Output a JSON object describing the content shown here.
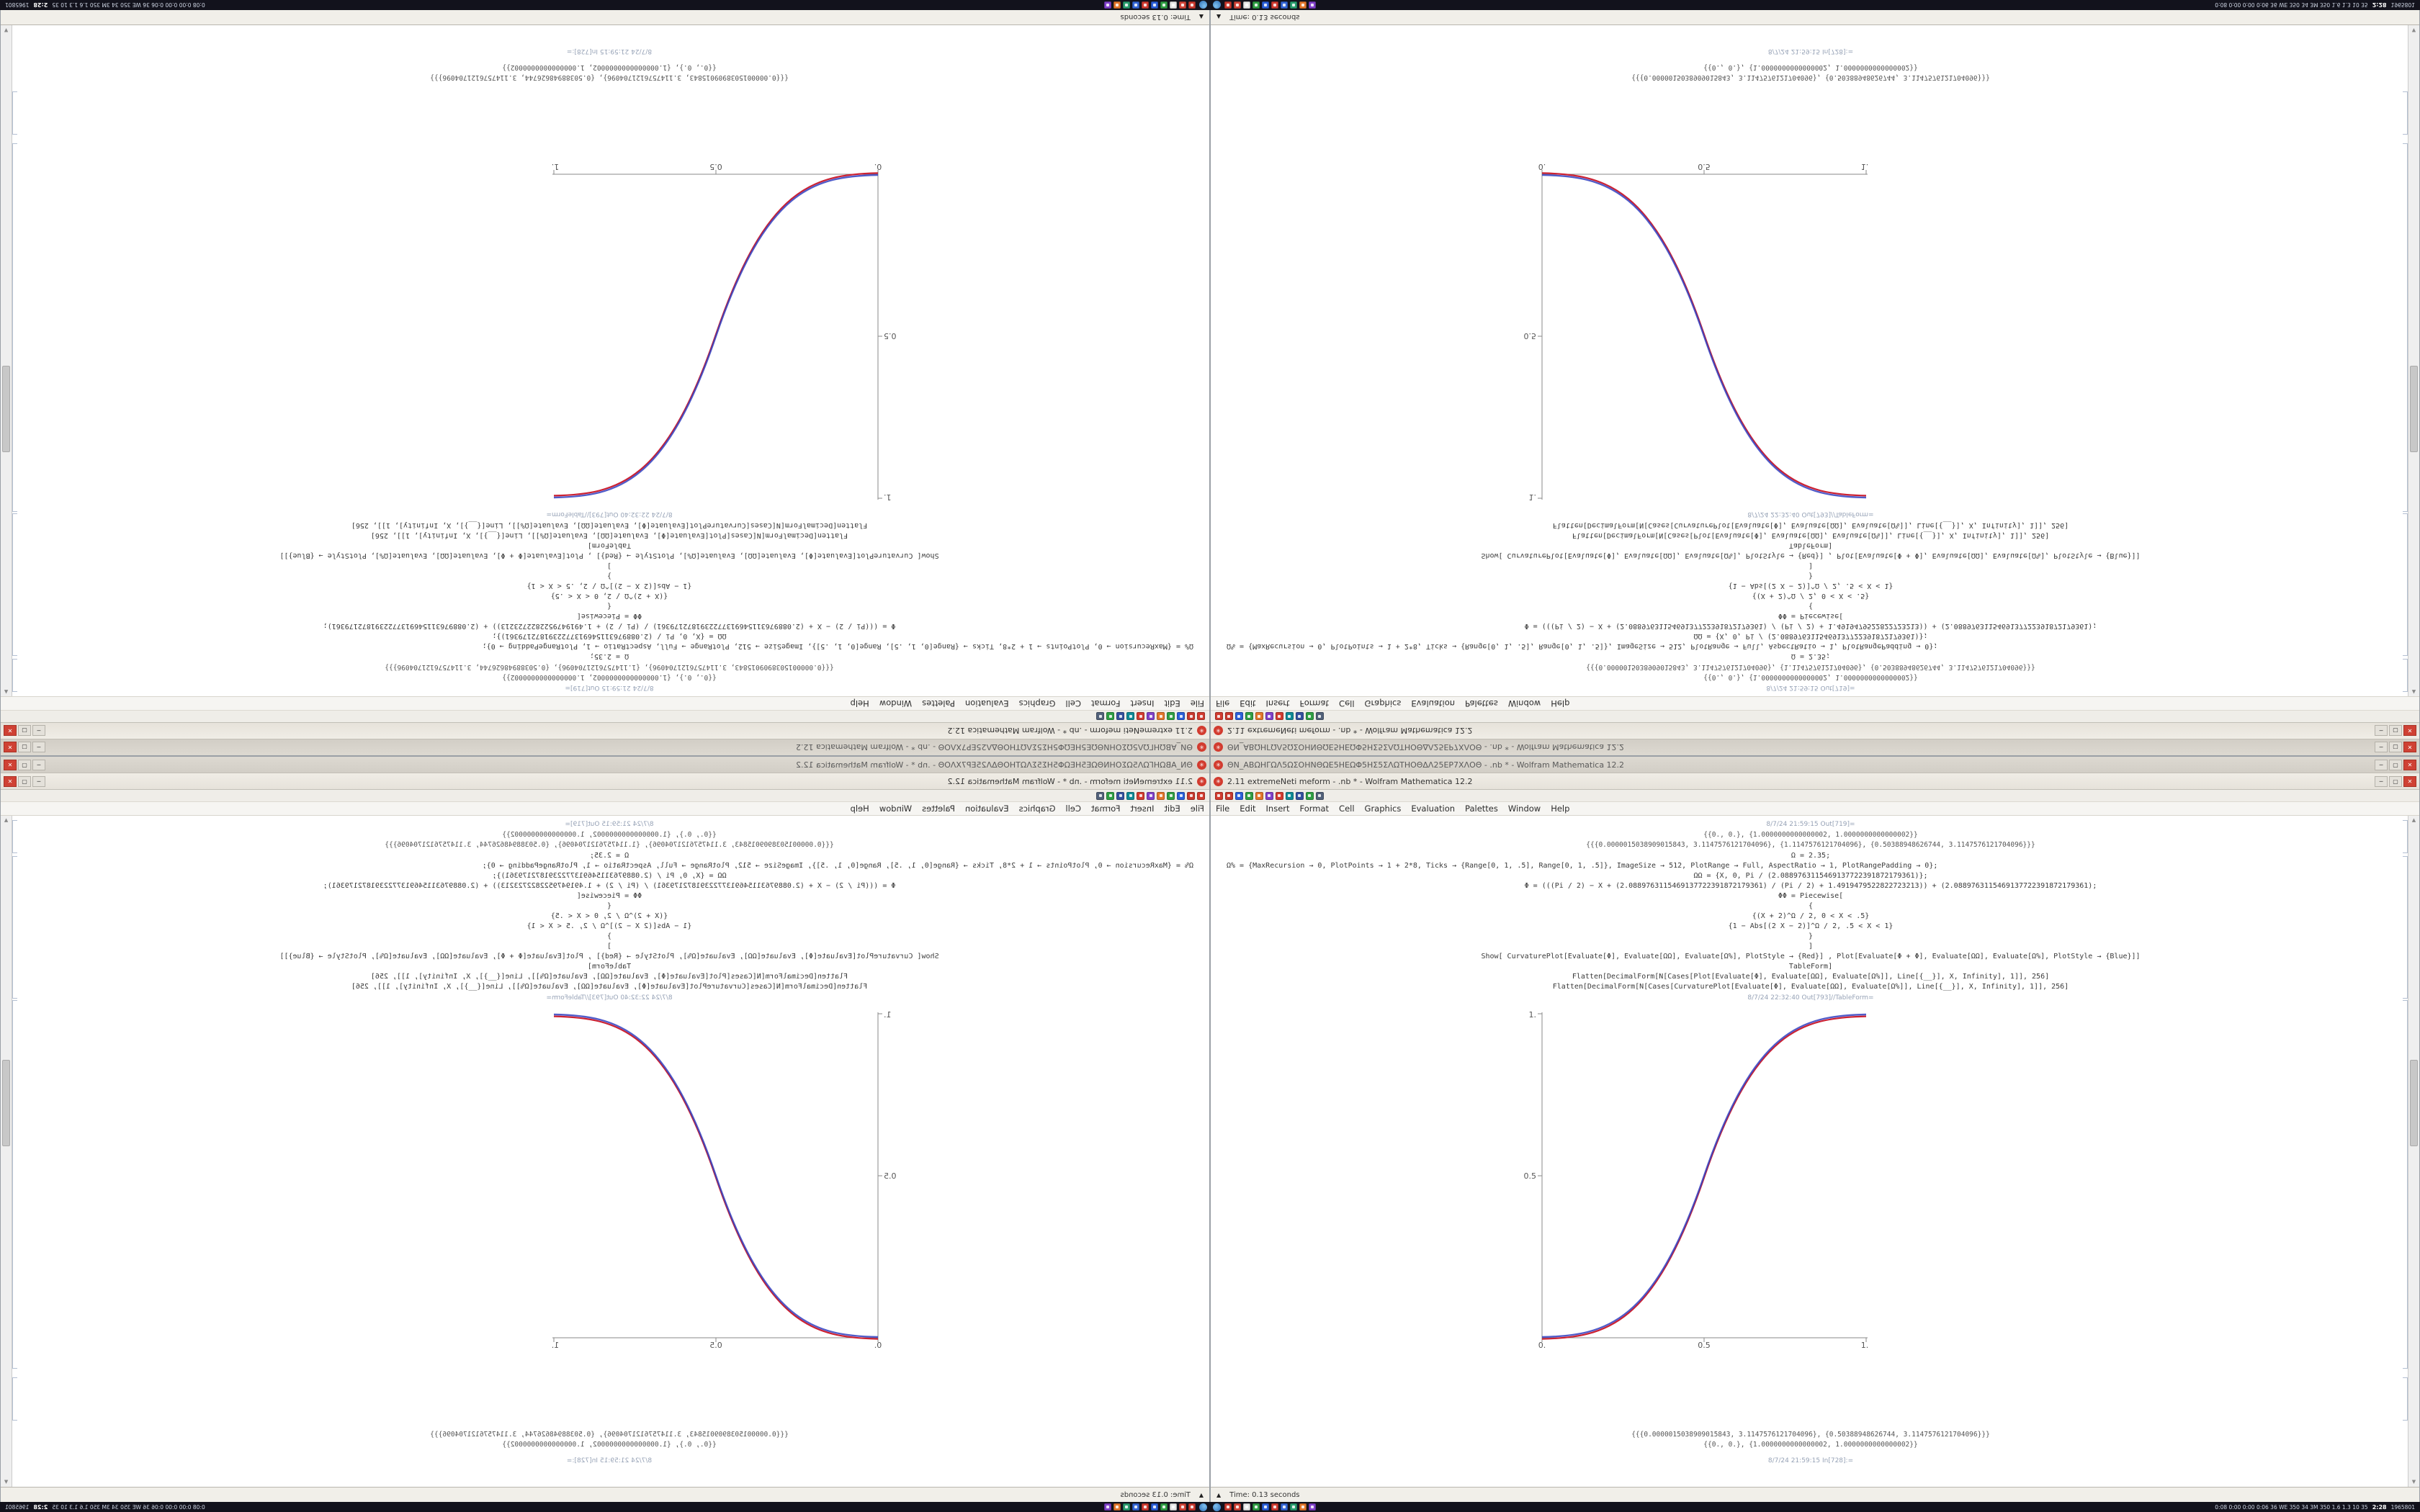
{
  "quadrants": [
    {
      "name": "top-left",
      "transform": "rot180"
    },
    {
      "name": "top-right",
      "transform": "flipv"
    },
    {
      "name": "bottom-left",
      "transform": "fliph"
    },
    {
      "name": "bottom-right",
      "transform": "none"
    }
  ],
  "desktop": {
    "back_window": {
      "title": "ΘΝ_ΑΒΩΗΓΩΛ5ΩΣΟΗΝΘΩΕ5ΗΕΩΦ5ΗΣ5ΣΛΩΤΗΟΘΔΛ25ΕΡ7ΧΛΟΘ - .nb * - Wolfram Mathematica 12.2"
    },
    "front_window": {
      "title": "2.11 extremeNeti meform - .nb * - Wolfram Mathematica 12.2"
    },
    "window_controls": {
      "minimize": "─",
      "maximize": "▢",
      "close": "✕"
    },
    "toolbar_icons": [
      {
        "name": "kernel-abort-icon",
        "color": "#d23b2f"
      },
      {
        "name": "kernel-abort2-icon",
        "color": "#c8392e"
      },
      {
        "name": "palette-blue-icon",
        "color": "#2b5fd9"
      },
      {
        "name": "palette-green-icon",
        "color": "#2f9e44"
      },
      {
        "name": "palette-orange-icon",
        "color": "#e2762b"
      },
      {
        "name": "palette-purple-icon",
        "color": "#8041c9"
      },
      {
        "name": "palette-red-icon",
        "color": "#d23b2f"
      },
      {
        "name": "palette-teal-icon",
        "color": "#0f8a96"
      },
      {
        "name": "palette-navy-icon",
        "color": "#34519e"
      },
      {
        "name": "palette-green2-icon",
        "color": "#2f9e44"
      },
      {
        "name": "palette-slate-icon",
        "color": "#52617a"
      }
    ],
    "menu": {
      "items": [
        "File",
        "Edit",
        "Insert",
        "Format",
        "Cell",
        "Graphics",
        "Evaluation",
        "Palettes",
        "Window",
        "Help"
      ]
    },
    "notebook": {
      "top_out_label": "8/7/24 21:59:15 Out[719]=",
      "top_outputs": [
        "{{0., 0.}, {1.0000000000000002, 1.0000000000000002}}",
        "{{{0.0000015038909015843, 3.1147576121704096}, {1.1147576121704096}, {0.50388948626744, 3.1147576121704096}}}"
      ],
      "code_lines": [
        {
          "text": "Ω = 2.35;",
          "align": "center"
        },
        {
          "text": "Ω% = {MaxRecursion → 0, PlotPoints → 1 + 2*8, Ticks → {Range[0, 1, .5], Range[0, 1, .5]}, ImageSize → 512, PlotRange → Full, AspectRatio → 1, PlotRangePadding → 0};",
          "align": "left"
        },
        {
          "text": "ΩΩ = {X, 0, Pi / (2.0889763115469137722391872179361)};",
          "align": "center"
        },
        {
          "text": "Φ = (((Pi / 2) − X + (2.0889763115469137722391872179361) / (Pi / 2) + 1.4919479522822723213)) + (2.0889763115469137722391872179361);",
          "align": "center"
        },
        {
          "text": "ΦΦ = Piecewise[",
          "align": "center"
        },
        {
          "text": "{",
          "align": "center"
        },
        {
          "text": "{(X + 2)^Ω / 2, 0 < X < .5}",
          "align": "center"
        },
        {
          "text": "{1 − Abs[(2 X − 2)]^Ω / 2, .5 < X < 1}",
          "align": "center"
        },
        {
          "text": "}",
          "align": "center"
        },
        {
          "text": "]",
          "align": "center"
        },
        {
          "text": "Show[ CurvaturePlot[Evaluate[Φ], Evaluate[ΩΩ], Evaluate[Ω%], PlotStyle → {Red}] , Plot[Evaluate[Φ + Φ], Evaluate[ΩΩ], Evaluate[Ω%], PlotStyle → {Blue}]]",
          "align": "center"
        },
        {
          "text": "TableForm]",
          "align": "center"
        },
        {
          "text": "Flatten[DecimalForm[N[Cases[Plot[Evaluate[Φ], Evaluate[ΩΩ], Evaluate[Ω%]], Line[{__}], X, Infinity], 1]], 256]",
          "align": "center"
        },
        {
          "text": "Flatten[DecimalForm[N[Cases[CurvaturePlot[Evaluate[Φ], Evaluate[ΩΩ], Evaluate[Ω%]], Line[{__}], X, Infinity], 1]], 256]",
          "align": "center"
        }
      ],
      "plot_out_label": "8/7/24 22:32:40 Out[793]//TableForm=",
      "plot": {
        "type": "line",
        "x_ticks": [
          "0.",
          "0.5",
          "1."
        ],
        "y_ticks": [
          "0.5",
          "1."
        ],
        "x_range": [
          0,
          1
        ],
        "y_range": [
          0,
          1
        ],
        "series": [
          {
            "name": "CurvaturePlot",
            "color": "#cc2233"
          },
          {
            "name": "Plot",
            "color": "#3340bf"
          }
        ],
        "sample_x": [
          0,
          0.1,
          0.2,
          0.3,
          0.4,
          0.5,
          0.6,
          0.7,
          0.8,
          0.9,
          1
        ],
        "sample_y": [
          0,
          0.011,
          0.058,
          0.151,
          0.296,
          0.5,
          0.704,
          0.849,
          0.942,
          0.989,
          1
        ]
      },
      "bottom_outputs": [
        "{{{0.0000015038909015843, 3.1147576121704096}, {0.50388948626744, 3.1147576121704096}}}",
        "{{0., 0.}, {1.0000000000000002, 1.0000000000000002}}"
      ],
      "bottom_in_label": "8/7/24 21:59:15 In[728]:="
    },
    "status_bar": {
      "left": "Time: 0.13 seconds"
    },
    "taskbar": {
      "icons": [
        {
          "name": "taskbar-app-red-icon",
          "color": "#c8392e"
        },
        {
          "name": "taskbar-app-crimson-icon",
          "color": "#d04438"
        },
        {
          "name": "taskbar-app-gray-icon",
          "color": "#e6e6e6"
        },
        {
          "name": "taskbar-app-green-icon",
          "color": "#2f9e44"
        },
        {
          "name": "taskbar-app-blue-icon",
          "color": "#2b5fd9"
        },
        {
          "name": "taskbar-app-red2-icon",
          "color": "#cf3b30"
        },
        {
          "name": "taskbar-app-blue2-icon",
          "color": "#3566d6"
        },
        {
          "name": "taskbar-app-teal-icon",
          "color": "#2a9d6e"
        },
        {
          "name": "taskbar-app-orange-icon",
          "color": "#e2762b"
        },
        {
          "name": "taskbar-app-purple-icon",
          "color": "#8041c9"
        }
      ],
      "tray_text": "0:08 0:00 0:00 0:06  36 WE 350 34 3M 350  1.6 1.3 10 35",
      "clock": "2:28",
      "counter": "1965801"
    },
    "icons": {
      "scroll_up": "▲",
      "scroll_down": "▼",
      "status_triangle": "▲",
      "spikey": "✳"
    }
  }
}
